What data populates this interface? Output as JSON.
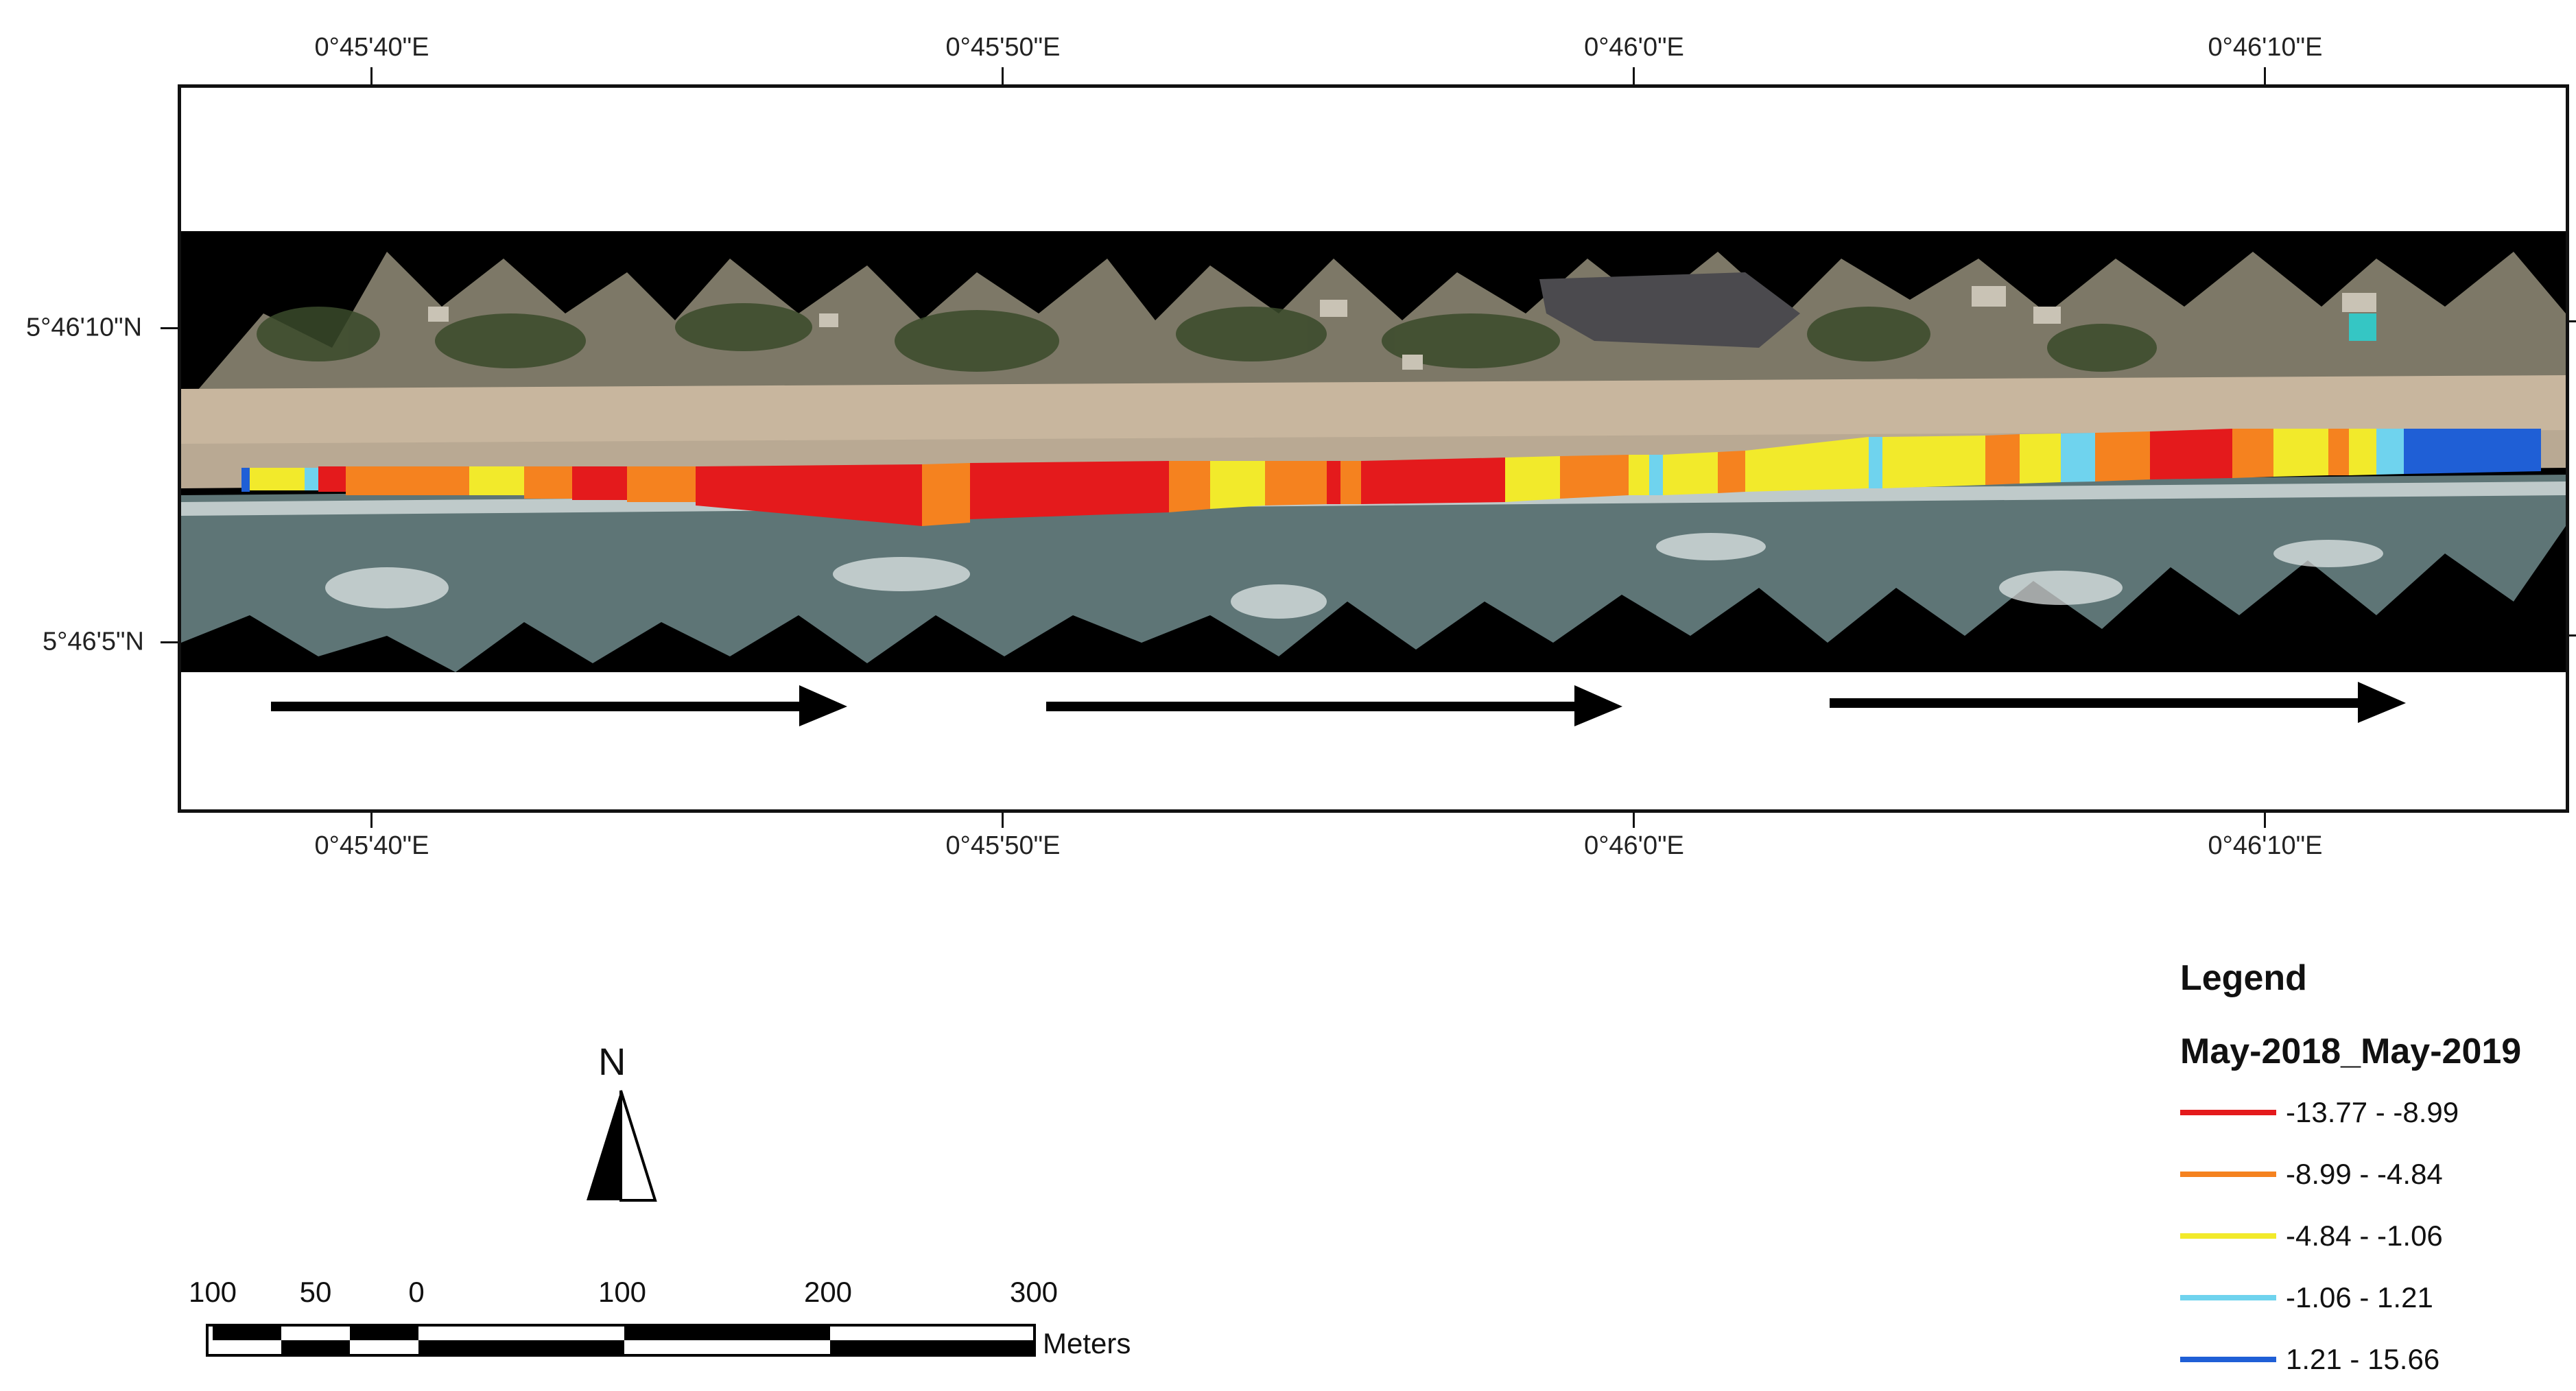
{
  "map": {
    "top_labels": [
      "0°45'40\"E",
      "0°45'50\"E",
      "0°46'0\"E",
      "0°46'10\"E"
    ],
    "bottom_labels": [
      "0°45'40\"E",
      "0°45'50\"E",
      "0°46'0\"E",
      "0°46'10\"E"
    ],
    "left_labels": [
      "5°46'10\"N",
      "5°46'5\"N"
    ],
    "imagery": "aerial-orthomosaic-coastline",
    "transect_colors": "erosion-accretion-classes",
    "arrows": [
      "longshore-drift-arrow",
      "longshore-drift-arrow",
      "longshore-drift-arrow"
    ]
  },
  "legend": {
    "title": "Legend",
    "subtitle": "May-2018_May-2019",
    "items": [
      {
        "label": "-13.77 - -8.99",
        "color": "#e41a1c"
      },
      {
        "label": "-8.99 - -4.84",
        "color": "#f5821f"
      },
      {
        "label": "-4.84 - -1.06",
        "color": "#f2ea2b"
      },
      {
        "label": "-1.06 - 1.21",
        "color": "#6fd3ee"
      },
      {
        "label": "1.21 - 15.66",
        "color": "#1f5fd6"
      }
    ]
  },
  "north_arrow": {
    "label": "N",
    "icon": "north-arrow-icon"
  },
  "scale_bar": {
    "labels": [
      "100",
      "50",
      "0",
      "100",
      "200",
      "300"
    ],
    "unit": "Meters"
  }
}
